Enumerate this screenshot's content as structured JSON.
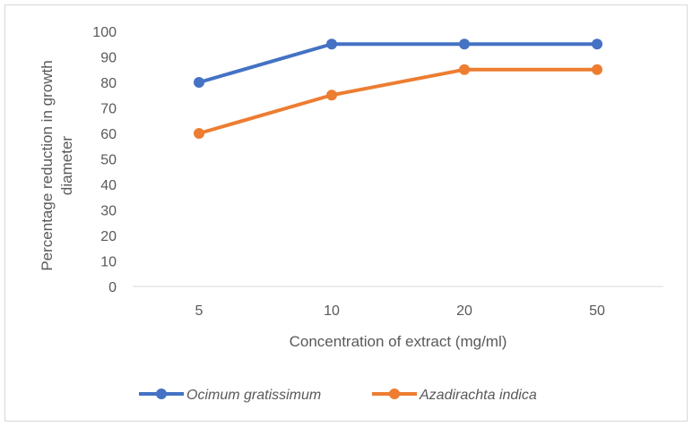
{
  "chart_data": {
    "type": "line",
    "categories": [
      "5",
      "10",
      "20",
      "50"
    ],
    "series": [
      {
        "name": "Ocimum gratissimum",
        "values": [
          80,
          95,
          95,
          95
        ],
        "color": "#4472C4"
      },
      {
        "name": "Azadirachta indica",
        "values": [
          60,
          75,
          85,
          85
        ],
        "color": "#ED7D31"
      }
    ],
    "xlabel": "Concentration of extract (mg/ml)",
    "ylabel": [
      "Percentage reduction in growth",
      "diameter"
    ],
    "ylim": [
      0,
      100
    ],
    "yticks": [
      0,
      10,
      20,
      30,
      40,
      50,
      60,
      70,
      80,
      90,
      100
    ],
    "grid": false,
    "legend": "bottom"
  }
}
